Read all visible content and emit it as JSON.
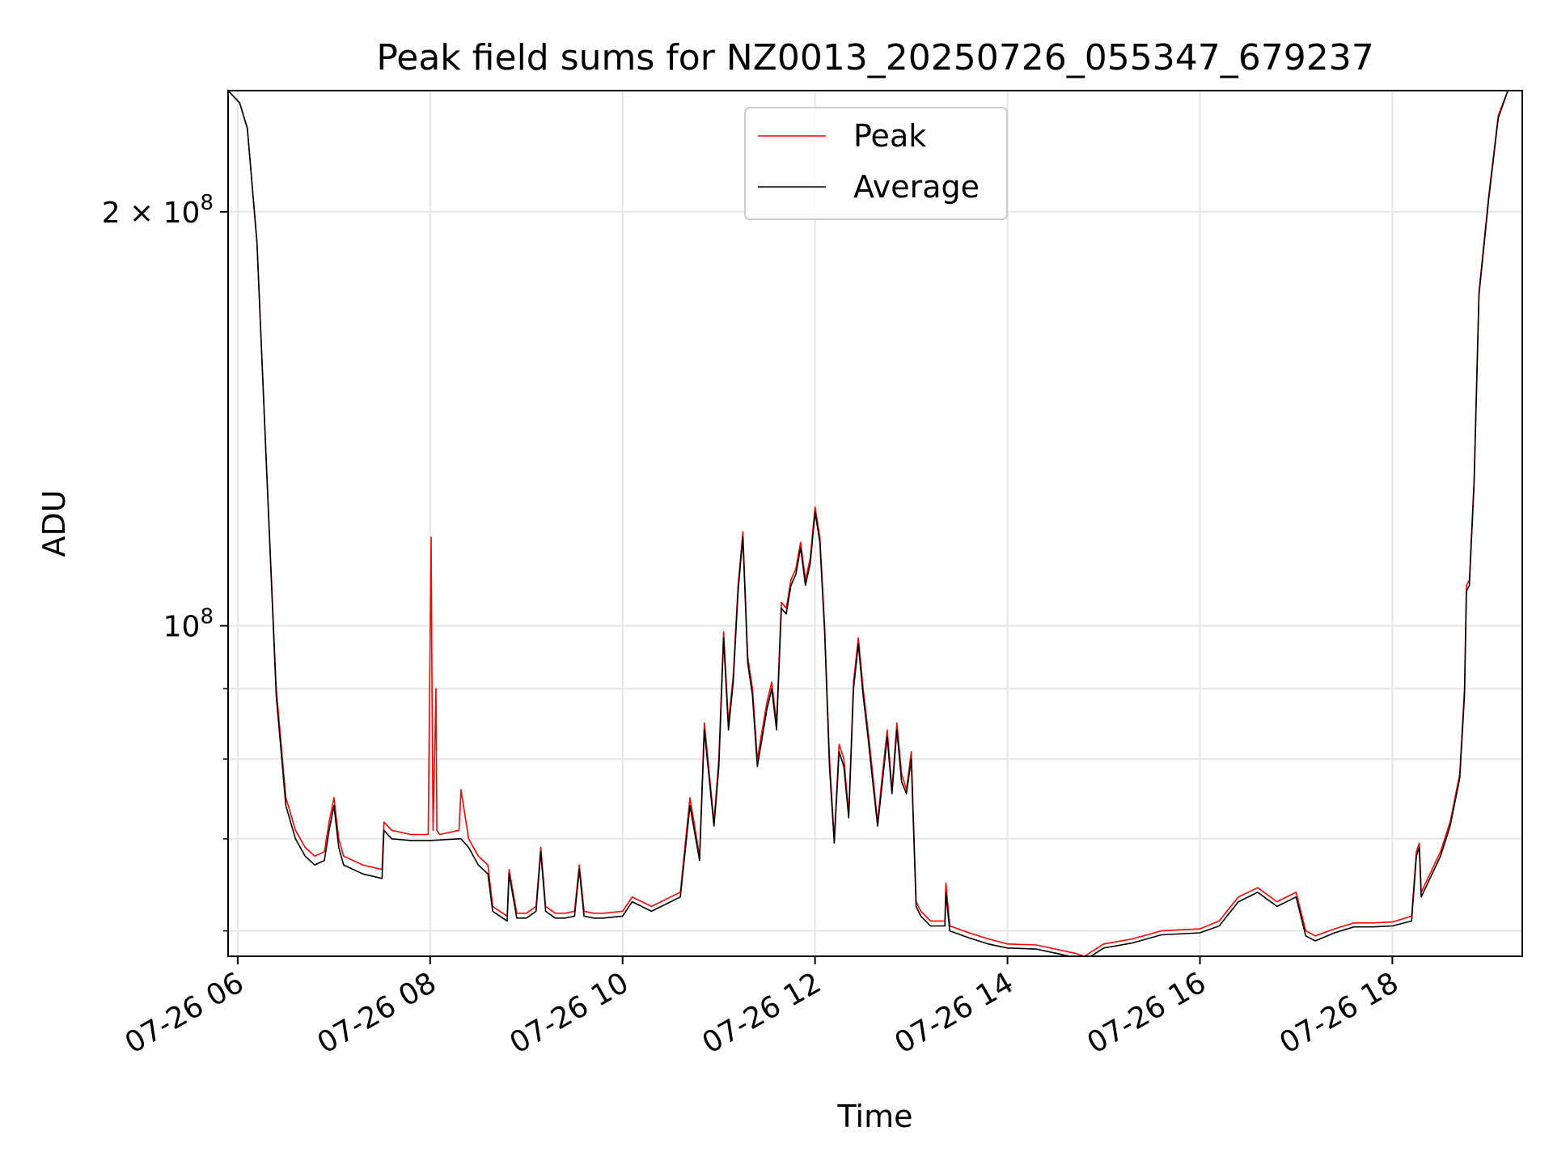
{
  "chart_data": {
    "type": "line",
    "title": "Peak field sums for NZ0013_20250726_055347_679237",
    "xlabel": "Time",
    "ylabel": "ADU",
    "y_scale": "log",
    "x_unit": "hours (2025-07-26, time of day)",
    "xlim": [
      5.9,
      19.35
    ],
    "ylim": [
      57500000,
      245000000
    ],
    "grid": true,
    "legend_position": "upper center",
    "x_ticks": [
      {
        "value": 6,
        "label": "07-26 06"
      },
      {
        "value": 8,
        "label": "07-26 08"
      },
      {
        "value": 10,
        "label": "07-26 10"
      },
      {
        "value": 12,
        "label": "07-26 12"
      },
      {
        "value": 14,
        "label": "07-26 14"
      },
      {
        "value": 16,
        "label": "07-26 16"
      },
      {
        "value": 18,
        "label": "07-26 18"
      }
    ],
    "y_major_ticks": [
      {
        "value": 100000000,
        "base": "10",
        "exp": "8",
        "coef": ""
      },
      {
        "value": 200000000,
        "base": "10",
        "exp": "8",
        "coef": "2 × "
      }
    ],
    "y_minor_ticks": [
      60000000,
      70000000,
      80000000,
      90000000
    ],
    "series": [
      {
        "name": "Peak",
        "color": "#ff0000",
        "x": [
          5.9,
          6.02,
          6.1,
          6.2,
          6.3,
          6.4,
          6.5,
          6.6,
          6.7,
          6.8,
          6.9,
          6.95,
          7.0,
          7.05,
          7.1,
          7.3,
          7.5,
          7.52,
          7.6,
          7.8,
          7.98,
          8.01,
          8.02,
          8.03,
          8.06,
          8.07,
          8.1,
          8.3,
          8.32,
          8.4,
          8.5,
          8.6,
          8.65,
          8.8,
          8.82,
          8.9,
          9.0,
          9.1,
          9.15,
          9.2,
          9.3,
          9.4,
          9.5,
          9.55,
          9.6,
          9.7,
          9.8,
          10.0,
          10.1,
          10.3,
          10.5,
          10.6,
          10.7,
          10.8,
          10.85,
          10.95,
          11.0,
          11.05,
          11.1,
          11.15,
          11.2,
          11.25,
          11.3,
          11.35,
          11.4,
          11.5,
          11.55,
          11.6,
          11.65,
          11.7,
          11.75,
          11.8,
          11.85,
          11.9,
          11.95,
          12.0,
          12.05,
          12.1,
          12.15,
          12.2,
          12.25,
          12.3,
          12.35,
          12.4,
          12.45,
          12.5,
          12.55,
          12.6,
          12.65,
          12.7,
          12.75,
          12.8,
          12.85,
          12.9,
          12.95,
          13.0,
          13.05,
          13.1,
          13.2,
          13.35,
          13.36,
          13.4,
          13.6,
          13.8,
          14.0,
          14.3,
          14.5,
          14.7,
          14.8,
          15.0,
          15.3,
          15.6,
          16.0,
          16.2,
          16.4,
          16.6,
          16.8,
          17.0,
          17.1,
          17.2,
          17.4,
          17.6,
          17.8,
          18.0,
          18.2,
          18.25,
          18.28,
          18.3,
          18.5,
          18.6,
          18.7,
          18.75,
          18.77,
          18.8,
          18.85,
          18.9,
          19.0,
          19.1,
          19.2,
          19.35
        ],
        "y": [
          245000000,
          240000000,
          230000000,
          190000000,
          130000000,
          90000000,
          75000000,
          71000000,
          69000000,
          68000000,
          68500000,
          72000000,
          75000000,
          70000000,
          68000000,
          67000000,
          66500000,
          72000000,
          71000000,
          70500000,
          70500000,
          116000000,
          88000000,
          71000000,
          90000000,
          71000000,
          70500000,
          71000000,
          76000000,
          70000000,
          68000000,
          67000000,
          62500000,
          61500000,
          66500000,
          61800000,
          61800000,
          62500000,
          69000000,
          62500000,
          61800000,
          61800000,
          62000000,
          67000000,
          62000000,
          61800000,
          61800000,
          62000000,
          63500000,
          62500000,
          63500000,
          64000000,
          75000000,
          68000000,
          85000000,
          72000000,
          80000000,
          99000000,
          85000000,
          92000000,
          107000000,
          117000000,
          95000000,
          90000000,
          80000000,
          88000000,
          91000000,
          85000000,
          104000000,
          103000000,
          108000000,
          110000000,
          115000000,
          108000000,
          112000000,
          122000000,
          116000000,
          100000000,
          80000000,
          70000000,
          82000000,
          80000000,
          73000000,
          91000000,
          98000000,
          90000000,
          84000000,
          78000000,
          72000000,
          78000000,
          84000000,
          76000000,
          85000000,
          78000000,
          76000000,
          81000000,
          63000000,
          62000000,
          61000000,
          61000000,
          65000000,
          60500000,
          59800000,
          59200000,
          58700000,
          58600000,
          58200000,
          57800000,
          57500000,
          58700000,
          59200000,
          60000000,
          60200000,
          61000000,
          63500000,
          64500000,
          63000000,
          64000000,
          60000000,
          59500000,
          60200000,
          60800000,
          60800000,
          60900000,
          61500000,
          68500000,
          69500000,
          64000000,
          68500000,
          72000000,
          78000000,
          90000000,
          107000000,
          108000000,
          128000000,
          175000000,
          205000000,
          235000000,
          245000000,
          245000000
        ]
      },
      {
        "name": "Average",
        "color": "#000000",
        "x": [
          5.9,
          6.02,
          6.1,
          6.2,
          6.3,
          6.4,
          6.5,
          6.6,
          6.7,
          6.8,
          6.9,
          6.95,
          7.0,
          7.05,
          7.1,
          7.3,
          7.5,
          7.52,
          7.6,
          7.8,
          8.0,
          8.3,
          8.32,
          8.4,
          8.5,
          8.6,
          8.65,
          8.8,
          8.82,
          8.9,
          9.0,
          9.1,
          9.15,
          9.2,
          9.3,
          9.4,
          9.5,
          9.55,
          9.6,
          9.7,
          9.8,
          10.0,
          10.1,
          10.3,
          10.5,
          10.6,
          10.7,
          10.8,
          10.85,
          10.95,
          11.0,
          11.05,
          11.1,
          11.15,
          11.2,
          11.25,
          11.3,
          11.35,
          11.4,
          11.5,
          11.55,
          11.6,
          11.65,
          11.7,
          11.75,
          11.8,
          11.85,
          11.9,
          11.95,
          12.0,
          12.05,
          12.1,
          12.15,
          12.2,
          12.25,
          12.3,
          12.35,
          12.4,
          12.45,
          12.5,
          12.55,
          12.6,
          12.65,
          12.7,
          12.75,
          12.8,
          12.85,
          12.9,
          12.95,
          13.0,
          13.05,
          13.1,
          13.2,
          13.35,
          13.36,
          13.4,
          13.6,
          13.8,
          14.0,
          14.3,
          14.5,
          14.7,
          14.8,
          15.0,
          15.3,
          15.6,
          16.0,
          16.2,
          16.4,
          16.6,
          16.8,
          17.0,
          17.1,
          17.2,
          17.4,
          17.6,
          17.8,
          18.0,
          18.2,
          18.25,
          18.28,
          18.3,
          18.5,
          18.6,
          18.7,
          18.75,
          18.77,
          18.8,
          18.85,
          18.9,
          19.0,
          19.1,
          19.2,
          19.35
        ],
        "y": [
          245000000,
          240000000,
          230000000,
          190000000,
          130000000,
          89000000,
          74000000,
          70000000,
          68000000,
          67000000,
          67500000,
          71000000,
          74000000,
          69000000,
          67000000,
          66000000,
          65500000,
          71000000,
          70000000,
          69800000,
          69800000,
          70000000,
          70000000,
          69000000,
          67000000,
          66000000,
          62000000,
          61000000,
          66000000,
          61300000,
          61300000,
          62000000,
          68500000,
          62000000,
          61300000,
          61300000,
          61500000,
          66500000,
          61500000,
          61300000,
          61300000,
          61500000,
          63000000,
          62000000,
          63000000,
          63500000,
          74000000,
          67500000,
          84000000,
          71500000,
          79000000,
          98000000,
          84000000,
          91000000,
          106000000,
          116000000,
          94000000,
          89000000,
          79000000,
          87000000,
          90000000,
          84000000,
          103000000,
          102000000,
          107000000,
          109000000,
          114000000,
          107000000,
          111000000,
          121000000,
          115000000,
          99000000,
          79000000,
          69500000,
          81000000,
          79000000,
          72500000,
          90000000,
          97000000,
          89000000,
          83000000,
          77000000,
          71500000,
          77000000,
          83000000,
          75500000,
          84000000,
          77000000,
          75500000,
          80000000,
          62500000,
          61500000,
          60500000,
          60500000,
          64000000,
          60000000,
          59300000,
          58700000,
          58300000,
          58200000,
          57800000,
          57400000,
          57100000,
          58300000,
          58800000,
          59600000,
          59800000,
          60500000,
          63000000,
          64000000,
          62500000,
          63500000,
          59500000,
          59000000,
          59800000,
          60400000,
          60400000,
          60500000,
          61000000,
          68000000,
          69000000,
          63500000,
          68000000,
          71500000,
          77500000,
          89000000,
          106000000,
          107000000,
          127000000,
          174000000,
          204000000,
          234000000,
          245000000,
          245000000
        ]
      }
    ]
  }
}
